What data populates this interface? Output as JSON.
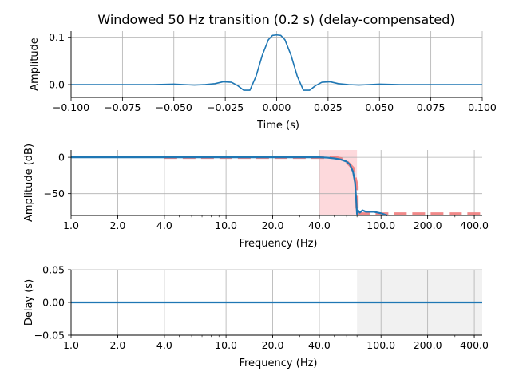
{
  "title": "Windowed 50 Hz transition (0.2 s) (delay-compensated)",
  "chart_data": [
    {
      "type": "line",
      "name": "impulse-response",
      "xlabel": "Time (s)",
      "ylabel": "Amplitude",
      "xlim": [
        -0.1,
        0.1
      ],
      "ylim": [
        -0.027,
        0.113
      ],
      "xticks": [
        -0.1,
        -0.075,
        -0.05,
        -0.025,
        0.0,
        0.025,
        0.05,
        0.075,
        0.1
      ],
      "xtick_labels": [
        "−0.100",
        "−0.075",
        "−0.050",
        "−0.025",
        "0.000",
        "0.025",
        "0.050",
        "0.075",
        "0.100"
      ],
      "yticks": [
        0.0,
        0.1
      ],
      "ytick_labels": [
        "0.0",
        "0.1"
      ],
      "grid": true,
      "series": [
        {
          "color": "#1f77b4",
          "x": [
            -0.1,
            -0.08,
            -0.06,
            -0.05,
            -0.045,
            -0.04,
            -0.035,
            -0.03,
            -0.026,
            -0.022,
            -0.019,
            -0.016,
            -0.013,
            -0.01,
            -0.007,
            -0.004,
            -0.002,
            0.0,
            0.002,
            0.004,
            0.007,
            0.01,
            0.013,
            0.016,
            0.019,
            0.022,
            0.026,
            0.03,
            0.035,
            0.04,
            0.045,
            0.05,
            0.06,
            0.08,
            0.1
          ],
          "y": [
            0.0,
            0.0,
            0.0,
            0.001,
            0.0,
            -0.001,
            0.0,
            0.002,
            0.006,
            0.005,
            -0.002,
            -0.012,
            -0.012,
            0.018,
            0.062,
            0.095,
            0.104,
            0.105,
            0.104,
            0.095,
            0.062,
            0.018,
            -0.012,
            -0.012,
            -0.002,
            0.005,
            0.006,
            0.002,
            0.0,
            -0.001,
            0.0,
            0.001,
            0.0,
            0.0,
            0.0
          ]
        }
      ]
    },
    {
      "type": "line",
      "name": "magnitude-response",
      "xlabel": "Frequency (Hz)",
      "ylabel": "Amplitude (dB)",
      "xscale": "log",
      "xlim": [
        1.0,
        450.0
      ],
      "ylim": [
        -80,
        10
      ],
      "xticks": [
        1.0,
        2.0,
        4.0,
        10.0,
        20.0,
        40.0,
        100.0,
        200.0,
        400.0
      ],
      "xtick_labels": [
        "1.0",
        "2.0",
        "4.0",
        "10.0",
        "20.0",
        "40.0",
        "100.0",
        "200.0",
        "400.0"
      ],
      "yticks": [
        0,
        -50
      ],
      "ytick_labels": [
        "0",
        "−50"
      ],
      "grid": true,
      "shaded_band": {
        "x": [
          40.0,
          70.0
        ],
        "color": "#fdd9dc"
      },
      "series": [
        {
          "style": "dashed",
          "color": "#f07c7c",
          "x": [
            4.0,
            40.0,
            50.0,
            55.0,
            60.0,
            66.0,
            70.0,
            70.0,
            450.0
          ],
          "y": [
            0.0,
            0.0,
            0.0,
            -2.0,
            -6.0,
            -15.0,
            -40.0,
            -78.0,
            -78.0
          ]
        },
        {
          "color": "#1f77b4",
          "x": [
            1.0,
            10.0,
            40.0,
            45.0,
            50.0,
            55.0,
            60.0,
            63.0,
            66.0,
            68.0,
            69.0,
            70.0,
            71.0,
            73.0,
            76.0,
            80.0,
            90.0,
            100.0,
            110.0
          ],
          "y": [
            0.0,
            0.0,
            0.0,
            -0.5,
            -1.5,
            -3.0,
            -6.0,
            -10.0,
            -20.0,
            -35.0,
            -55.0,
            -78.0,
            -73.0,
            -76.0,
            -73.0,
            -75.0,
            -75.0,
            -77.0,
            -80.0
          ]
        }
      ]
    },
    {
      "type": "line",
      "name": "group-delay",
      "xlabel": "Frequency (Hz)",
      "ylabel": "Delay (s)",
      "xscale": "log",
      "xlim": [
        1.0,
        450.0
      ],
      "ylim": [
        -0.05,
        0.05
      ],
      "xticks": [
        1.0,
        2.0,
        4.0,
        10.0,
        20.0,
        40.0,
        100.0,
        200.0,
        400.0
      ],
      "xtick_labels": [
        "1.0",
        "2.0",
        "4.0",
        "10.0",
        "20.0",
        "40.0",
        "100.0",
        "200.0",
        "400.0"
      ],
      "yticks": [
        0.05,
        0.0,
        -0.05
      ],
      "ytick_labels": [
        "0.05",
        "0.00",
        "−0.05"
      ],
      "grid": true,
      "shaded_band": {
        "x": [
          70.0,
          450.0
        ],
        "color": "#f1f1f1"
      },
      "series": [
        {
          "color": "#1f77b4",
          "x": [
            1.0,
            450.0
          ],
          "y": [
            0.0,
            0.0
          ]
        }
      ]
    }
  ]
}
